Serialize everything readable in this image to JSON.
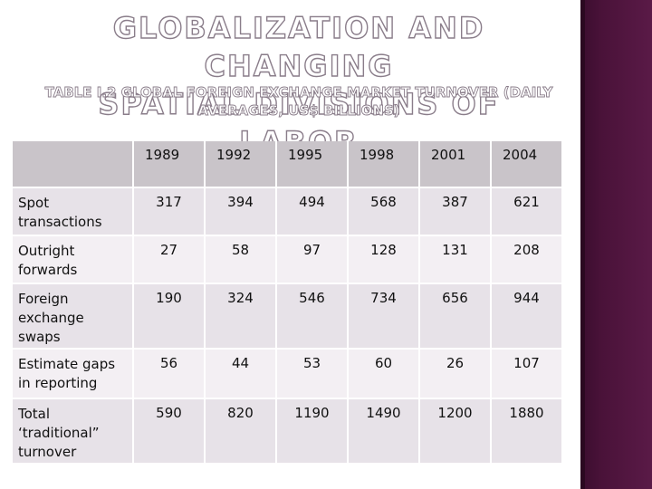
{
  "slide": {
    "title_line1": "GLOBALIZATION AND CHANGING",
    "title_line2": "SPATIAL DIVISIONS OF LABOR",
    "subtitle_line1": "TABLE I.2 GLOBAL FOREIGN EXCHANGE MARKET TURNOVER (DAILY",
    "subtitle_line2": "AVERAGES, US$ BILLIONS)"
  },
  "table": {
    "years": [
      "1989",
      "1992",
      "1995",
      "1998",
      "2001",
      "2004"
    ],
    "rows": [
      {
        "label": "Spot transactions",
        "values": [
          "317",
          "394",
          "494",
          "568",
          "387",
          "621"
        ]
      },
      {
        "label": "Outright forwards",
        "values": [
          "27",
          "58",
          "97",
          "128",
          "131",
          "208"
        ]
      },
      {
        "label": "Foreign exchange swaps",
        "values": [
          "190",
          "324",
          "546",
          "734",
          "656",
          "944"
        ]
      },
      {
        "label": "Estimate gaps in reporting",
        "values": [
          "56",
          "44",
          "53",
          "60",
          "26",
          "107"
        ]
      },
      {
        "label": "Total ‘traditional” turnover",
        "values": [
          "590",
          "820",
          "1190",
          "1490",
          "1200",
          "1880"
        ]
      }
    ]
  },
  "colors": {
    "sidebar": "#4a1239",
    "header_fill": "#c9c4c9",
    "row_fill_a": "#e7e2e8",
    "row_fill_b": "#f3eff3"
  }
}
